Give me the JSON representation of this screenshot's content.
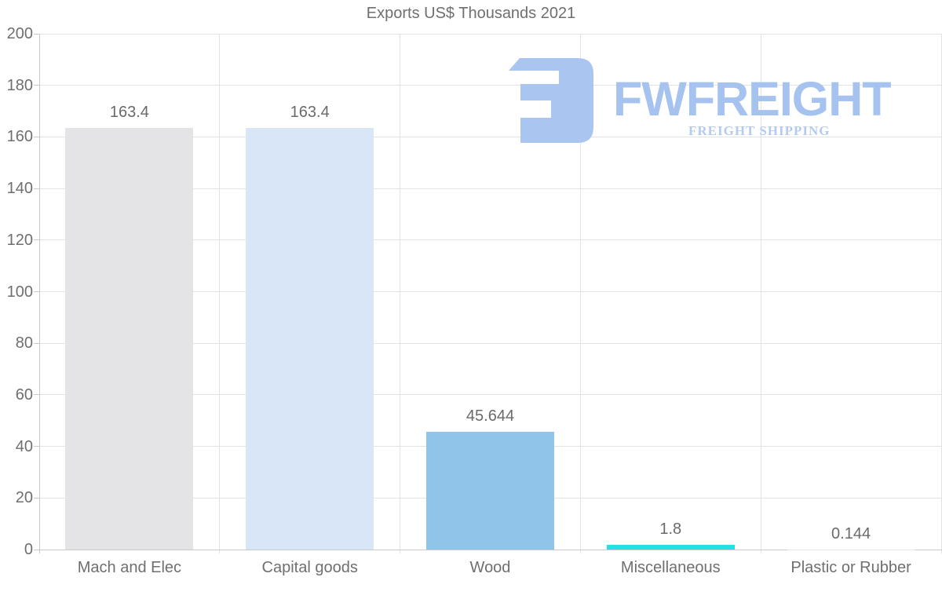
{
  "chart_data": {
    "type": "bar",
    "title": "Exports US$ Thousands 2021",
    "categories": [
      "Mach and Elec",
      "Capital goods",
      "Wood",
      "Miscellaneous",
      "Plastic or Rubber"
    ],
    "values": [
      163.4,
      163.4,
      45.644,
      1.8,
      0.144
    ],
    "value_labels": [
      "163.4",
      "163.4",
      "45.644",
      "1.8",
      "0.144"
    ],
    "bar_colors": [
      "#e4e4e6",
      "#d8e6f8",
      "#90c4e9",
      "#25e1e6",
      "#e4e4e6"
    ],
    "xlabel": "",
    "ylabel": "",
    "ylim": [
      0,
      200
    ],
    "yticks": [
      0,
      20,
      40,
      60,
      80,
      100,
      120,
      140,
      160,
      180,
      200
    ],
    "grid": true,
    "legend": false
  },
  "logo": {
    "brand": "FWFREIGHT",
    "tagline": "FREIGHT SHIPPING",
    "brand_color": "#a6c3ef",
    "tagline_color": "#b3cbf3",
    "mark_color": "#a9c5f0",
    "mark_icon": "reversed-e-freight-mark"
  },
  "colors": {
    "background": "#ffffff",
    "title_text": "#6f6f6f",
    "axis_text": "#6f6f6f",
    "value_text": "#6a6a6a",
    "gridline": "#e3e3e3",
    "axis_line": "#c9c9c9"
  }
}
